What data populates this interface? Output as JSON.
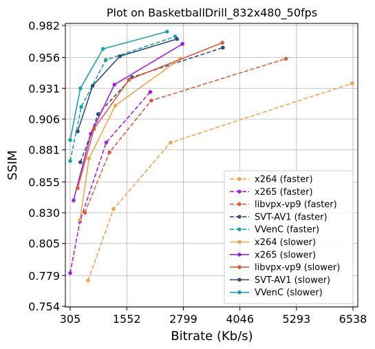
{
  "chart_data": {
    "type": "line",
    "title": "Plot on BasketballDrill_832x480_50fps",
    "xlabel": "Bitrate (Kb/s)",
    "ylabel": "SSIM",
    "xlim": [
      305,
      6538
    ],
    "ylim": [
      0.754,
      0.982
    ],
    "xticks": [
      "305",
      "1552",
      "2799",
      "4046",
      "5293",
      "6538"
    ],
    "yticks": [
      "0.754",
      "0.779",
      "0.805",
      "0.830",
      "0.855",
      "0.881",
      "0.906",
      "0.931",
      "0.956",
      "0.982"
    ],
    "grid": true,
    "legend_position": "bottom-right",
    "series": [
      {
        "name": "x264 (faster)",
        "color": "#f0a44a",
        "dash": true,
        "points": [
          [
            700,
            0.775
          ],
          [
            1260,
            0.833
          ],
          [
            2520,
            0.887
          ],
          [
            6520,
            0.935
          ]
        ]
      },
      {
        "name": "x265 (faster)",
        "color": "#a020dc",
        "dash": true,
        "points": [
          [
            305,
            0.781
          ],
          [
            520,
            0.823
          ],
          [
            1100,
            0.887
          ],
          [
            2070,
            0.928
          ]
        ]
      },
      {
        "name": "libvpx-vp9 (faster)",
        "color": "#dc5a3c",
        "dash": true,
        "points": [
          [
            630,
            0.83
          ],
          [
            1170,
            0.879
          ],
          [
            2090,
            0.921
          ],
          [
            5060,
            0.955
          ]
        ]
      },
      {
        "name": "SVT-AV1 (faster)",
        "color": "#2d5078",
        "dash": true,
        "points": [
          [
            530,
            0.871
          ],
          [
            920,
            0.91
          ],
          [
            1670,
            0.94
          ],
          [
            3670,
            0.964
          ]
        ]
      },
      {
        "name": "VVenC (faster)",
        "color": "#1aa0a8",
        "dash": true,
        "points": [
          [
            305,
            0.872
          ],
          [
            550,
            0.916
          ],
          [
            1090,
            0.954
          ],
          [
            2620,
            0.973
          ]
        ]
      },
      {
        "name": "x264 (slower)",
        "color": "#f0a44a",
        "dash": false,
        "points": [
          [
            520,
            0.824
          ],
          [
            720,
            0.874
          ],
          [
            1300,
            0.917
          ],
          [
            2730,
            0.955
          ]
        ]
      },
      {
        "name": "x265 (slower)",
        "color": "#a020dc",
        "dash": false,
        "points": [
          [
            380,
            0.84
          ],
          [
            760,
            0.894
          ],
          [
            1280,
            0.934
          ],
          [
            2780,
            0.967
          ]
        ]
      },
      {
        "name": "libvpx-vp9 (slower)",
        "color": "#dc5a3c",
        "dash": false,
        "points": [
          [
            470,
            0.85
          ],
          [
            830,
            0.898
          ],
          [
            1600,
            0.938
          ],
          [
            3660,
            0.968
          ]
        ]
      },
      {
        "name": "SVT-AV1 (slower)",
        "color": "#2d5078",
        "dash": false,
        "points": [
          [
            470,
            0.896
          ],
          [
            800,
            0.933
          ],
          [
            1400,
            0.957
          ],
          [
            2660,
            0.971
          ]
        ]
      },
      {
        "name": "VVenC (slower)",
        "color": "#1aa0a8",
        "dash": false,
        "points": [
          [
            305,
            0.889
          ],
          [
            530,
            0.931
          ],
          [
            1030,
            0.963
          ],
          [
            2440,
            0.977
          ]
        ]
      }
    ]
  }
}
